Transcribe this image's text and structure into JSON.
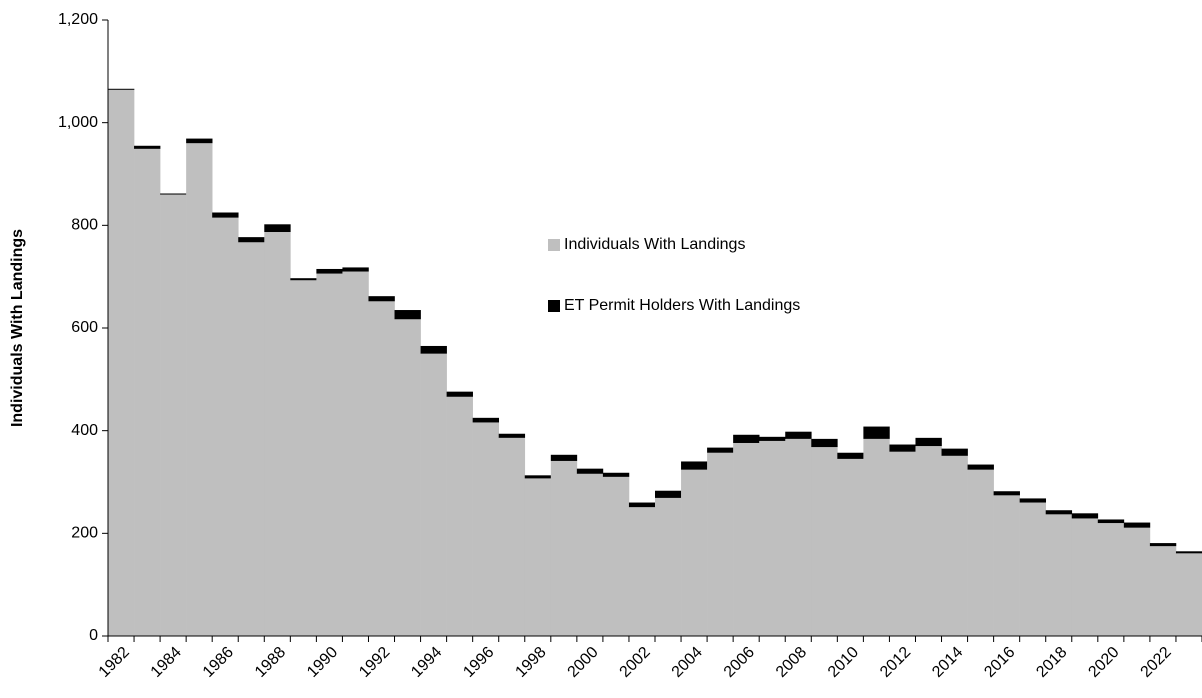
{
  "chart_data": {
    "type": "stacked_bar",
    "ylabel": "Individuals With Landings",
    "categories": [
      "1982",
      null,
      "1984",
      null,
      "1986",
      null,
      "1988",
      null,
      "1990",
      null,
      "1992",
      null,
      "1994",
      null,
      "1996",
      null,
      "1998",
      null,
      "2000",
      null,
      "2002",
      null,
      "2004",
      null,
      "2006",
      null,
      "2008",
      null,
      "2010",
      null,
      "2012",
      null,
      "2014",
      null,
      "2016",
      null,
      "2018",
      null,
      "2020",
      null,
      "2022",
      null
    ],
    "series": [
      {
        "name": "Individuals With Landings",
        "color": "#bfbfbf",
        "values": [
          1064,
          949,
          860,
          960,
          815,
          767,
          787,
          693,
          706,
          710,
          652,
          617,
          550,
          466,
          416,
          386,
          307,
          341,
          316,
          310,
          251,
          269,
          324,
          357,
          376,
          380,
          384,
          368,
          345,
          384,
          359,
          370,
          351,
          324,
          274,
          260,
          237,
          229,
          220,
          211,
          175,
          161
        ]
      },
      {
        "name": "ET Permit Holders With Landings",
        "color": "#000000",
        "values": [
          2,
          6,
          2,
          9,
          10,
          10,
          15,
          4,
          9,
          8,
          10,
          18,
          15,
          10,
          9,
          8,
          6,
          12,
          10,
          8,
          9,
          14,
          16,
          10,
          16,
          8,
          14,
          16,
          12,
          24,
          14,
          16,
          14,
          10,
          8,
          8,
          8,
          10,
          7,
          10,
          6,
          4
        ]
      }
    ],
    "ylim": [
      0,
      1200
    ],
    "yticks": [
      0,
      200,
      400,
      600,
      800,
      {
        "value": 1000,
        "label": "1,000"
      },
      {
        "value": 1200,
        "label": "1,200"
      }
    ],
    "legend": "center"
  }
}
